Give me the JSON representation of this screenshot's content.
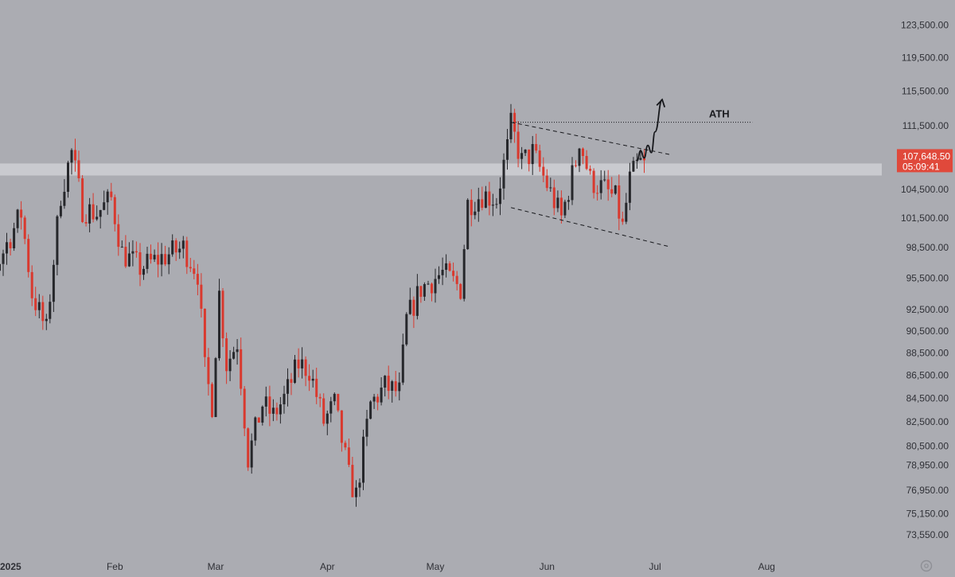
{
  "colors": {
    "background": "#abacb2",
    "up": "#26272b",
    "down": "#d9392e",
    "zone": "#d3d4d8",
    "price_box": "#e0493b",
    "text": "#2f3036",
    "annotation": "#17181c"
  },
  "icons": {
    "settings": "settings-gear-icon"
  },
  "chart_data": {
    "type": "candlestick",
    "axis": {
      "y_ticks": [
        "123,500.00",
        "119,500.00",
        "115,500.00",
        "111,500.00",
        "104,500.00",
        "101,500.00",
        "98,500.00",
        "95,500.00",
        "92,500.00",
        "90,500.00",
        "88,500.00",
        "86,500.00",
        "84,500.00",
        "82,500.00",
        "80,500.00",
        "78,950.00",
        "76,950.00",
        "75,150.00",
        "73,550.00"
      ],
      "x_ticks": [
        "2025",
        "Feb",
        "Mar",
        "Apr",
        "May",
        "Jun",
        "Jul",
        "Aug"
      ],
      "x_dates": [
        "2025-01-01",
        "2025-02-01",
        "2025-03-01",
        "2025-04-01",
        "2025-05-01",
        "2025-06-01",
        "2025-07-01",
        "2025-08-01"
      ],
      "y_scale": "log"
    },
    "last_price": "107,648.50",
    "countdown": "05:09:41",
    "last_price_value": 107648.5,
    "support_zone": [
      106000,
      107300
    ],
    "annotations": {
      "ath_label": "ATH",
      "ath_price": 111900
    },
    "channel": {
      "upper": [
        [
          "2025-05-22",
          111900
        ],
        [
          "2025-07-05",
          108300
        ]
      ],
      "lower": [
        [
          "2025-05-22",
          102600
        ],
        [
          "2025-07-05",
          98600
        ]
      ]
    },
    "projection": [
      [
        "2025-06-26",
        107600
      ],
      [
        "2025-06-27",
        108700
      ],
      [
        "2025-06-28",
        107900
      ],
      [
        "2025-06-29",
        109300
      ],
      [
        "2025-06-30",
        108500
      ],
      [
        "2025-07-01",
        110800
      ],
      [
        "2025-07-03",
        114500
      ]
    ],
    "key_points": [
      [
        "2024-12-20",
        94000
      ],
      [
        "2024-12-28",
        95000
      ],
      [
        "2025-01-06",
        102000
      ],
      [
        "2025-01-09",
        94000
      ],
      [
        "2025-01-13",
        90500
      ],
      [
        "2025-01-17",
        104000
      ],
      [
        "2025-01-20",
        108500
      ],
      [
        "2025-01-23",
        102500
      ],
      [
        "2025-01-27",
        102000
      ],
      [
        "2025-01-31",
        103500
      ],
      [
        "2025-02-03",
        98000
      ],
      [
        "2025-02-08",
        96500
      ],
      [
        "2025-02-14",
        97500
      ],
      [
        "2025-02-20",
        98500
      ],
      [
        "2025-02-24",
        96000
      ],
      [
        "2025-02-26",
        87000
      ],
      [
        "2025-02-28",
        84000
      ],
      [
        "2025-03-02",
        94000
      ],
      [
        "2025-03-04",
        87500
      ],
      [
        "2025-03-07",
        89500
      ],
      [
        "2025-03-10",
        79500
      ],
      [
        "2025-03-14",
        84000
      ],
      [
        "2025-03-17",
        83000
      ],
      [
        "2025-03-20",
        84500
      ],
      [
        "2025-03-24",
        87500
      ],
      [
        "2025-03-27",
        87000
      ],
      [
        "2025-03-31",
        82500
      ],
      [
        "2025-04-03",
        84000
      ],
      [
        "2025-04-07",
        78000
      ],
      [
        "2025-04-09",
        76500
      ],
      [
        "2025-04-13",
        84000
      ],
      [
        "2025-04-17",
        85500
      ],
      [
        "2025-04-21",
        85000
      ],
      [
        "2025-04-23",
        91500
      ],
      [
        "2025-04-27",
        94500
      ],
      [
        "2025-05-03",
        96000
      ],
      [
        "2025-05-08",
        94500
      ],
      [
        "2025-05-10",
        103000
      ],
      [
        "2025-05-14",
        104000
      ],
      [
        "2025-05-18",
        103500
      ],
      [
        "2025-05-21",
        109000
      ],
      [
        "2025-05-22",
        111500
      ],
      [
        "2025-05-25",
        107500
      ],
      [
        "2025-05-28",
        108500
      ],
      [
        "2025-06-01",
        105000
      ],
      [
        "2025-06-05",
        101500
      ],
      [
        "2025-06-09",
        107500
      ],
      [
        "2025-06-10",
        110000
      ],
      [
        "2025-06-13",
        105500
      ],
      [
        "2025-06-17",
        104500
      ],
      [
        "2025-06-20",
        103500
      ],
      [
        "2025-06-22",
        100500
      ],
      [
        "2025-06-24",
        105500
      ],
      [
        "2025-06-26",
        107000
      ],
      [
        "2025-06-28",
        107648
      ]
    ]
  }
}
